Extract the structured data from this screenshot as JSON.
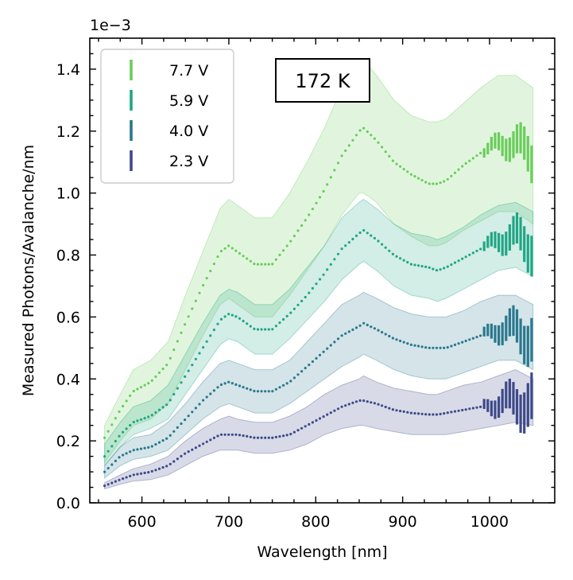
{
  "chart_data": {
    "type": "line",
    "title": "",
    "xlabel": "Wavelength [nm]",
    "ylabel": "Measured Photons/Avalanche/nm",
    "y_scale_label": "1e−3",
    "xlim": [
      540,
      1075
    ],
    "ylim": [
      0.0,
      1.5
    ],
    "xticks": [
      600,
      700,
      800,
      900,
      1000
    ],
    "xtick_labels": [
      "600",
      "700",
      "800",
      "900",
      "1000"
    ],
    "yticks": [
      0.0,
      0.2,
      0.4,
      0.6,
      0.8,
      1.0,
      1.2,
      1.4
    ],
    "ytick_labels": [
      "0.0",
      "0.2",
      "0.4",
      "0.6",
      "0.8",
      "1.0",
      "1.2",
      "1.4"
    ],
    "annotation": "172 K",
    "legend_position": "top-left",
    "series": [
      {
        "name": "7.7 V",
        "color": "#6acd5b",
        "x": [
          557,
          575,
          590,
          610,
          630,
          650,
          670,
          690,
          700,
          710,
          730,
          750,
          770,
          790,
          810,
          830,
          850,
          855,
          870,
          890,
          910,
          930,
          940,
          950,
          970,
          990,
          1010,
          1030,
          1050
        ],
        "y": [
          0.21,
          0.3,
          0.36,
          0.39,
          0.45,
          0.58,
          0.7,
          0.81,
          0.83,
          0.81,
          0.77,
          0.77,
          0.84,
          0.92,
          1.01,
          1.12,
          1.2,
          1.21,
          1.17,
          1.1,
          1.06,
          1.03,
          1.03,
          1.04,
          1.09,
          1.13,
          1.16,
          1.16,
          1.12
        ],
        "band_low": [
          0.13,
          0.2,
          0.25,
          0.27,
          0.32,
          0.43,
          0.54,
          0.64,
          0.66,
          0.64,
          0.6,
          0.6,
          0.67,
          0.75,
          0.83,
          0.93,
          1.0,
          1.0,
          0.97,
          0.9,
          0.86,
          0.83,
          0.83,
          0.84,
          0.88,
          0.91,
          0.94,
          0.94,
          0.9
        ],
        "band_high": [
          0.25,
          0.35,
          0.43,
          0.46,
          0.52,
          0.67,
          0.81,
          0.95,
          0.98,
          0.96,
          0.92,
          0.92,
          1.0,
          1.1,
          1.21,
          1.34,
          1.42,
          1.43,
          1.38,
          1.3,
          1.25,
          1.23,
          1.23,
          1.24,
          1.29,
          1.34,
          1.38,
          1.38,
          1.34
        ]
      },
      {
        "name": "5.9 V",
        "color": "#21a685",
        "x": [
          557,
          575,
          590,
          610,
          630,
          650,
          670,
          690,
          700,
          710,
          730,
          750,
          770,
          790,
          810,
          830,
          850,
          855,
          870,
          890,
          910,
          930,
          940,
          950,
          970,
          990,
          1010,
          1030,
          1050
        ],
        "y": [
          0.15,
          0.22,
          0.26,
          0.28,
          0.32,
          0.41,
          0.5,
          0.59,
          0.61,
          0.6,
          0.56,
          0.56,
          0.61,
          0.67,
          0.74,
          0.82,
          0.87,
          0.88,
          0.85,
          0.8,
          0.77,
          0.76,
          0.75,
          0.76,
          0.79,
          0.82,
          0.85,
          0.86,
          0.83
        ],
        "band_low": [
          0.12,
          0.18,
          0.22,
          0.24,
          0.27,
          0.35,
          0.43,
          0.51,
          0.53,
          0.52,
          0.48,
          0.48,
          0.53,
          0.59,
          0.65,
          0.72,
          0.77,
          0.78,
          0.75,
          0.7,
          0.67,
          0.66,
          0.65,
          0.66,
          0.69,
          0.72,
          0.75,
          0.76,
          0.73
        ],
        "band_high": [
          0.19,
          0.26,
          0.31,
          0.33,
          0.38,
          0.48,
          0.58,
          0.67,
          0.69,
          0.68,
          0.64,
          0.64,
          0.69,
          0.76,
          0.83,
          0.92,
          0.97,
          0.98,
          0.95,
          0.9,
          0.87,
          0.86,
          0.85,
          0.86,
          0.89,
          0.93,
          0.96,
          0.97,
          0.94
        ]
      },
      {
        "name": "4.0 V",
        "color": "#2a788e",
        "x": [
          557,
          575,
          590,
          610,
          630,
          650,
          670,
          690,
          700,
          710,
          730,
          750,
          770,
          790,
          810,
          830,
          850,
          855,
          870,
          890,
          910,
          930,
          940,
          950,
          970,
          990,
          1010,
          1030,
          1050
        ],
        "y": [
          0.1,
          0.15,
          0.17,
          0.18,
          0.21,
          0.27,
          0.33,
          0.38,
          0.39,
          0.38,
          0.36,
          0.36,
          0.39,
          0.44,
          0.49,
          0.54,
          0.57,
          0.58,
          0.56,
          0.53,
          0.51,
          0.5,
          0.5,
          0.5,
          0.52,
          0.54,
          0.56,
          0.56,
          0.53
        ],
        "band_low": [
          0.08,
          0.12,
          0.14,
          0.15,
          0.17,
          0.22,
          0.27,
          0.31,
          0.32,
          0.31,
          0.29,
          0.29,
          0.32,
          0.36,
          0.4,
          0.44,
          0.47,
          0.48,
          0.46,
          0.43,
          0.41,
          0.4,
          0.4,
          0.4,
          0.42,
          0.44,
          0.46,
          0.46,
          0.43
        ],
        "band_high": [
          0.12,
          0.18,
          0.21,
          0.22,
          0.26,
          0.32,
          0.39,
          0.45,
          0.46,
          0.45,
          0.43,
          0.43,
          0.46,
          0.52,
          0.58,
          0.64,
          0.67,
          0.68,
          0.66,
          0.63,
          0.61,
          0.6,
          0.6,
          0.6,
          0.62,
          0.65,
          0.67,
          0.67,
          0.64
        ]
      },
      {
        "name": "2.3 V",
        "color": "#3e4a89",
        "x": [
          557,
          575,
          590,
          610,
          630,
          650,
          670,
          690,
          700,
          710,
          730,
          750,
          770,
          790,
          810,
          830,
          850,
          855,
          870,
          890,
          910,
          930,
          940,
          950,
          970,
          990,
          1010,
          1030,
          1050
        ],
        "y": [
          0.055,
          0.075,
          0.09,
          0.1,
          0.12,
          0.16,
          0.19,
          0.22,
          0.22,
          0.22,
          0.21,
          0.21,
          0.22,
          0.25,
          0.28,
          0.31,
          0.33,
          0.33,
          0.32,
          0.3,
          0.29,
          0.285,
          0.285,
          0.29,
          0.3,
          0.31,
          0.32,
          0.33,
          0.31
        ],
        "band_low": [
          0.045,
          0.06,
          0.07,
          0.075,
          0.09,
          0.12,
          0.15,
          0.17,
          0.17,
          0.17,
          0.16,
          0.16,
          0.17,
          0.19,
          0.22,
          0.24,
          0.25,
          0.25,
          0.24,
          0.23,
          0.22,
          0.22,
          0.22,
          0.22,
          0.23,
          0.24,
          0.25,
          0.26,
          0.25
        ],
        "band_high": [
          0.065,
          0.09,
          0.11,
          0.125,
          0.15,
          0.2,
          0.24,
          0.27,
          0.28,
          0.27,
          0.26,
          0.26,
          0.28,
          0.31,
          0.35,
          0.38,
          0.4,
          0.41,
          0.39,
          0.37,
          0.36,
          0.35,
          0.35,
          0.36,
          0.38,
          0.39,
          0.41,
          0.43,
          0.4
        ]
      }
    ]
  }
}
